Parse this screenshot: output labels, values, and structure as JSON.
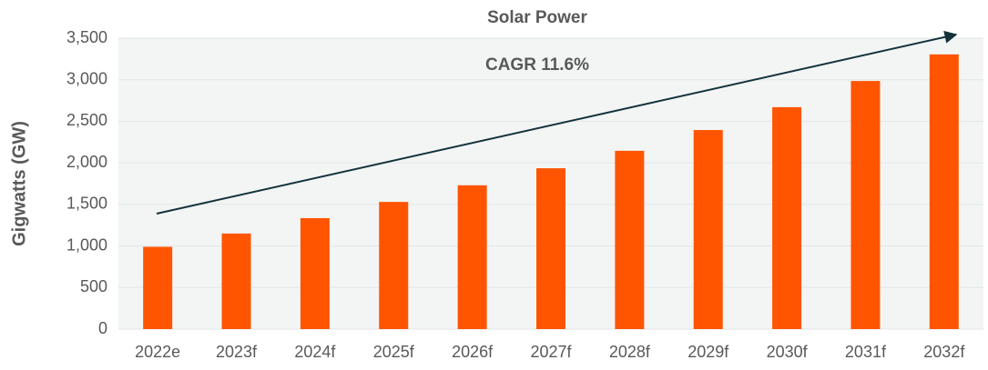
{
  "chart_data": {
    "type": "bar",
    "title": "Solar Power",
    "annotation": "CAGR 11.6%",
    "y_label": "Gigwatts (GW)",
    "categories": [
      "2022e",
      "2023f",
      "2024f",
      "2025f",
      "2026f",
      "2027f",
      "2028f",
      "2029f",
      "2030f",
      "2031f",
      "2032f"
    ],
    "values": [
      990,
      1150,
      1335,
      1530,
      1730,
      1935,
      2145,
      2395,
      2670,
      2985,
      3305
    ],
    "color": "#ff5500",
    "ylim": [
      0,
      3500
    ],
    "yticks": [
      0,
      500,
      {
        "value": 1000,
        "label": "1,000"
      },
      {
        "value": 1500,
        "label": "1,500"
      },
      {
        "value": 2000,
        "label": "2,000"
      },
      {
        "value": 2500,
        "label": "2,500"
      },
      {
        "value": 3000,
        "label": "3,000"
      },
      {
        "value": 3500,
        "label": "3,500"
      }
    ],
    "grid": true
  }
}
